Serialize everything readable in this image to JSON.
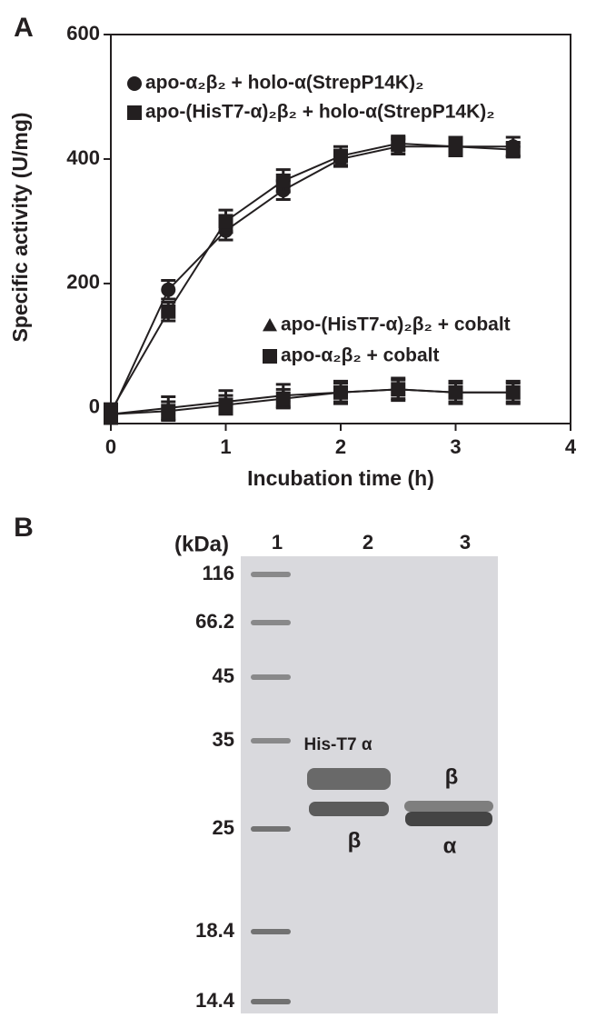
{
  "chart_data": {
    "type": "line",
    "panel_label": "A",
    "xlabel": "Incubation time (h)",
    "ylabel": "Specific activity (U/mg)",
    "x": [
      0,
      0.5,
      1,
      1.5,
      2,
      2.5,
      3,
      3.5
    ],
    "xlim": [
      0,
      4
    ],
    "xticks": [
      0,
      1,
      2,
      3,
      4
    ],
    "ylim": [
      -25,
      600
    ],
    "yticks": [
      0,
      200,
      400,
      600
    ],
    "series": [
      {
        "name": "apo-α₂β₂ + holo-α(StrepP14K)₂",
        "marker": "circle",
        "color": "#231f20",
        "values": [
          -10,
          190,
          285,
          350,
          400,
          420,
          420,
          420
        ],
        "errors": [
          12,
          15,
          15,
          15,
          12,
          12,
          12,
          15
        ]
      },
      {
        "name": "apo-(HisT7-α)₂β₂ + holo-α(StrepP14K)₂",
        "marker": "square",
        "color": "#231f20",
        "values": [
          -5,
          155,
          300,
          365,
          405,
          425,
          420,
          415
        ],
        "errors": [
          12,
          15,
          18,
          18,
          15,
          12,
          15,
          12
        ]
      },
      {
        "name": "apo-(HisT7-α)₂β₂ + cobalt",
        "marker": "triangle",
        "color": "#231f20",
        "values": [
          -10,
          0,
          10,
          20,
          25,
          30,
          25,
          25
        ],
        "errors": [
          15,
          18,
          18,
          18,
          18,
          18,
          18,
          18
        ]
      },
      {
        "name": "apo-α₂β₂ + cobalt",
        "marker": "square",
        "color": "#231f20",
        "values": [
          -10,
          -5,
          5,
          15,
          25,
          30,
          25,
          25
        ],
        "errors": [
          12,
          15,
          15,
          15,
          15,
          15,
          15,
          15
        ]
      }
    ]
  },
  "gel": {
    "panel_label": "B",
    "unit_label": "(kDa)",
    "lanes": [
      "1",
      "2",
      "3"
    ],
    "markers": [
      "116",
      "66.2",
      "45",
      "35",
      "25",
      "18.4",
      "14.4"
    ],
    "band_labels": [
      "His-T7 α",
      "β",
      "β",
      "α"
    ]
  }
}
